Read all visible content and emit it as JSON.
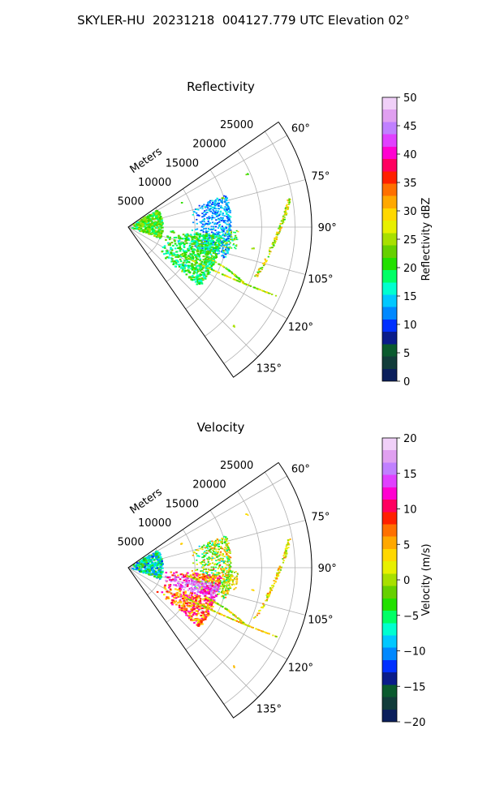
{
  "page": {
    "title": "SKYLER-HU  20231218  004127.779 UTC Elevation 02°"
  },
  "chart_data": [
    {
      "type": "polar-sector",
      "title": "Reflectivity",
      "radial_label": "Meters",
      "radial_ticks": [
        "5000",
        "10000",
        "15000",
        "20000",
        "25000"
      ],
      "radial_tick_values": [
        5000,
        10000,
        15000,
        20000,
        25000
      ],
      "r_max": 27500,
      "theta_range_deg": [
        55,
        145
      ],
      "angle_ticks": [
        "60°",
        "75°",
        "90°",
        "105°",
        "120°",
        "135°"
      ],
      "angle_tick_values": [
        60,
        75,
        90,
        105,
        120,
        135
      ],
      "grid": true,
      "colorbar": {
        "label": "Reflectivity dBZ",
        "min": 0,
        "max": 50,
        "ticks": [
          "0",
          "5",
          "10",
          "15",
          "20",
          "25",
          "30",
          "35",
          "40",
          "45",
          "50"
        ],
        "tick_values": [
          0,
          5,
          10,
          15,
          20,
          25,
          30,
          35,
          40,
          45,
          50
        ]
      }
    },
    {
      "type": "polar-sector",
      "title": "Velocity",
      "radial_label": "Meters",
      "radial_ticks": [
        "5000",
        "10000",
        "15000",
        "20000",
        "25000"
      ],
      "radial_tick_values": [
        5000,
        10000,
        15000,
        20000,
        25000
      ],
      "r_max": 27500,
      "theta_range_deg": [
        55,
        145
      ],
      "angle_ticks": [
        "60°",
        "75°",
        "90°",
        "105°",
        "120°",
        "135°"
      ],
      "angle_tick_values": [
        60,
        75,
        90,
        105,
        120,
        135
      ],
      "grid": true,
      "colorbar": {
        "label": "Velocity (m/s)",
        "min": -20,
        "max": 20,
        "ticks": [
          "−20",
          "−15",
          "−10",
          "−5",
          "0",
          "5",
          "10",
          "15",
          "20"
        ],
        "tick_values": [
          -20,
          -15,
          -10,
          -5,
          0,
          5,
          10,
          15,
          20
        ]
      }
    }
  ],
  "colormap": {
    "name": "pyart_HomeyerRainbow",
    "colors": [
      "#0b1f5c",
      "#123c3a",
      "#0a5a2e",
      "#0a1c8a",
      "#0030ff",
      "#0088ff",
      "#00c8ff",
      "#00ffd0",
      "#00ff66",
      "#22e000",
      "#66d000",
      "#a8e000",
      "#e8f000",
      "#ffd800",
      "#ffa800",
      "#ff7000",
      "#ff2000",
      "#ff0060",
      "#ff00d0",
      "#e040ff",
      "#c080ff",
      "#e0a0f0",
      "#f0d0f8"
    ]
  }
}
